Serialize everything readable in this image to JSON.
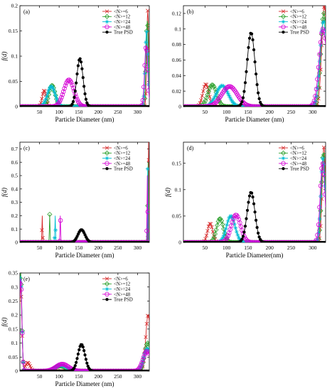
{
  "figure": {
    "legend_entries": [
      {
        "label": "<N>=6",
        "color": "#d62728",
        "marker": "x"
      },
      {
        "label": "<N>=12",
        "color": "#2ca02c",
        "marker": "diamond"
      },
      {
        "label": "<N>=24",
        "color": "#00bcd4",
        "marker": "star"
      },
      {
        "label": "<N>=48",
        "color": "#d400d4",
        "marker": "circle"
      },
      {
        "label": "True PSD",
        "color": "#000000",
        "marker": "dot"
      }
    ]
  },
  "chart_data": [
    {
      "type": "line",
      "panel_label": "(a)",
      "xlabel": "Particle Diameter (nm)",
      "ylabel": "f(d)",
      "xlim": [
        0,
        330
      ],
      "ylim": [
        0,
        0.2
      ],
      "xticks": [
        50,
        100,
        150,
        200,
        250,
        300
      ],
      "yticks": [
        0,
        0.05,
        0.1,
        0.15,
        0.2
      ],
      "ytick_labels": [
        "0",
        "0.05",
        "0.1",
        "0.15",
        "0.2"
      ],
      "legend_position": "top-right",
      "series": [
        {
          "name": "<N>=6",
          "color": "#d62728",
          "peaks": [
            {
              "center": 62,
              "height": 0.032,
              "sigma": 5
            },
            {
              "center": 326,
              "height": 0.19,
              "sigma": 2.5
            }
          ]
        },
        {
          "name": "<N>=12",
          "color": "#2ca02c",
          "peaks": [
            {
              "center": 82,
              "height": 0.042,
              "sigma": 8
            },
            {
              "center": 325,
              "height": 0.17,
              "sigma": 3
            }
          ]
        },
        {
          "name": "<N>=24",
          "color": "#00bcd4",
          "peaks": [
            {
              "center": 80,
              "height": 0.04,
              "sigma": 10
            },
            {
              "center": 323,
              "height": 0.15,
              "sigma": 3.5
            }
          ]
        },
        {
          "name": "<N>=48",
          "color": "#d400d4",
          "peaks": [
            {
              "center": 125,
              "height": 0.053,
              "sigma": 13
            },
            {
              "center": 322,
              "height": 0.12,
              "sigma": 4
            }
          ]
        },
        {
          "name": "True PSD",
          "color": "#000000",
          "peaks": [
            {
              "center": 153,
              "height": 0.095,
              "sigma": 8
            }
          ]
        }
      ]
    },
    {
      "type": "line",
      "panel_label": "(b)",
      "xlabel": "Particle Diameter (nm)",
      "ylabel": "",
      "xlim": [
        0,
        330
      ],
      "ylim": [
        0,
        0.13
      ],
      "xticks": [
        50,
        100,
        150,
        200,
        250,
        300
      ],
      "yticks": [
        0,
        0.02,
        0.04,
        0.06,
        0.08,
        0.1,
        0.12
      ],
      "ytick_labels": [
        "0",
        "0.02",
        "0.04",
        "0.06",
        "0.08",
        "0.1",
        "0.12"
      ],
      "legend_position": "top-right",
      "series": [
        {
          "name": "<N>=6",
          "color": "#d62728",
          "peaks": [
            {
              "center": 52,
              "height": 0.029,
              "sigma": 7
            },
            {
              "center": 327,
              "height": 0.13,
              "sigma": 6
            }
          ]
        },
        {
          "name": "<N>=12",
          "color": "#2ca02c",
          "peaks": [
            {
              "center": 67,
              "height": 0.028,
              "sigma": 10
            },
            {
              "center": 326,
              "height": 0.12,
              "sigma": 7
            }
          ]
        },
        {
          "name": "<N>=24",
          "color": "#00bcd4",
          "peaks": [
            {
              "center": 90,
              "height": 0.027,
              "sigma": 14
            },
            {
              "center": 325,
              "height": 0.11,
              "sigma": 8
            }
          ]
        },
        {
          "name": "<N>=48",
          "color": "#d400d4",
          "peaks": [
            {
              "center": 107,
              "height": 0.026,
              "sigma": 18
            },
            {
              "center": 324,
              "height": 0.1,
              "sigma": 9
            }
          ]
        },
        {
          "name": "True PSD",
          "color": "#000000",
          "peaks": [
            {
              "center": 157,
              "height": 0.095,
              "sigma": 9
            }
          ]
        }
      ]
    },
    {
      "type": "line",
      "panel_label": "(c)",
      "xlabel": "Particle Diameter (nm)",
      "ylabel": "f(d)",
      "xlim": [
        0,
        330
      ],
      "ylim": [
        0,
        0.75
      ],
      "xticks": [
        50,
        100,
        150,
        200,
        250,
        300
      ],
      "yticks": [
        0,
        0.1,
        0.2,
        0.3,
        0.4,
        0.5,
        0.6,
        0.7
      ],
      "ytick_labels": [
        "0",
        "0.1",
        "0.2",
        "0.3",
        "0.4",
        "0.5",
        "0.6",
        "0.7"
      ],
      "legend_position": "top-right",
      "series": [
        {
          "name": "<N>=6",
          "color": "#d62728",
          "peaks": [
            {
              "center": 57,
              "height": 0.2,
              "sigma": 0.8
            },
            {
              "center": 328,
              "height": 0.75,
              "sigma": 0.8
            }
          ]
        },
        {
          "name": "<N>=12",
          "color": "#2ca02c",
          "peaks": [
            {
              "center": 76,
              "height": 0.21,
              "sigma": 0.8
            },
            {
              "center": 327,
              "height": 0.6,
              "sigma": 0.8
            }
          ]
        },
        {
          "name": "<N>=24",
          "color": "#00bcd4",
          "peaks": [
            {
              "center": 90,
              "height": 0.2,
              "sigma": 0.8
            },
            {
              "center": 326,
              "height": 0.55,
              "sigma": 0.8
            }
          ]
        },
        {
          "name": "<N>=48",
          "color": "#d400d4",
          "peaks": [
            {
              "center": 103,
              "height": 0.2,
              "sigma": 0.8
            },
            {
              "center": 325,
              "height": 0.5,
              "sigma": 0.8
            }
          ]
        },
        {
          "name": "True PSD",
          "color": "#000000",
          "peaks": [
            {
              "center": 157,
              "height": 0.095,
              "sigma": 9
            }
          ]
        }
      ]
    },
    {
      "type": "line",
      "panel_label": "(d)",
      "xlabel": "Particle Diameter(nm)",
      "ylabel": "f(d)",
      "xlim": [
        0,
        330
      ],
      "ylim": [
        0,
        0.19
      ],
      "xticks": [
        50,
        100,
        150,
        200,
        250,
        300
      ],
      "yticks": [
        0,
        0.05,
        0.1,
        0.15
      ],
      "ytick_labels": [
        "0",
        "0.05",
        "0.1",
        "0.15"
      ],
      "legend_position": "top-right",
      "series": [
        {
          "name": "<N>=6",
          "color": "#d62728",
          "peaks": [
            {
              "center": 62,
              "height": 0.036,
              "sigma": 6
            },
            {
              "center": 326,
              "height": 0.18,
              "sigma": 4
            }
          ]
        },
        {
          "name": "<N>=12",
          "color": "#2ca02c",
          "peaks": [
            {
              "center": 85,
              "height": 0.045,
              "sigma": 8
            },
            {
              "center": 325,
              "height": 0.17,
              "sigma": 4.5
            }
          ]
        },
        {
          "name": "<N>=24",
          "color": "#00bcd4",
          "peaks": [
            {
              "center": 110,
              "height": 0.05,
              "sigma": 10
            },
            {
              "center": 324,
              "height": 0.16,
              "sigma": 5
            }
          ]
        },
        {
          "name": "<N>=48",
          "color": "#d400d4",
          "peaks": [
            {
              "center": 122,
              "height": 0.052,
              "sigma": 11
            },
            {
              "center": 323,
              "height": 0.15,
              "sigma": 5.5
            }
          ]
        },
        {
          "name": "True PSD",
          "color": "#000000",
          "peaks": [
            {
              "center": 157,
              "height": 0.095,
              "sigma": 9
            }
          ]
        }
      ]
    },
    {
      "type": "line",
      "panel_label": "(e)",
      "xlabel": "Particle Diameter (nm)",
      "ylabel": "f(d)",
      "xlim": [
        0,
        330
      ],
      "ylim": [
        0,
        0.35
      ],
      "xticks": [
        50,
        100,
        150,
        200,
        250,
        300
      ],
      "yticks": [
        0,
        0.05,
        0.1,
        0.15,
        0.2,
        0.25,
        0.3,
        0.35
      ],
      "ytick_labels": [
        "0",
        "0.05",
        "0.1",
        "0.15",
        "0.2",
        "0.25",
        "0.3",
        "0.35"
      ],
      "legend_position": "top-right",
      "series": [
        {
          "name": "<N>=6",
          "color": "#d62728",
          "peaks": [
            {
              "center": 2,
              "height": 0.3,
              "sigma": 3
            },
            {
              "center": 20,
              "height": 0.03,
              "sigma": 6
            },
            {
              "center": 327,
              "height": 0.2,
              "sigma": 6
            }
          ]
        },
        {
          "name": "<N>=12",
          "color": "#2ca02c",
          "peaks": [
            {
              "center": 2,
              "height": 0.35,
              "sigma": 3
            },
            {
              "center": 103,
              "height": 0.018,
              "sigma": 14
            },
            {
              "center": 326,
              "height": 0.1,
              "sigma": 8
            }
          ]
        },
        {
          "name": "<N>=24",
          "color": "#00bcd4",
          "peaks": [
            {
              "center": 2,
              "height": 0.34,
              "sigma": 3
            },
            {
              "center": 105,
              "height": 0.02,
              "sigma": 15
            },
            {
              "center": 325,
              "height": 0.08,
              "sigma": 9
            }
          ]
        },
        {
          "name": "<N>=48",
          "color": "#d400d4",
          "peaks": [
            {
              "center": 2,
              "height": 0.33,
              "sigma": 3
            },
            {
              "center": 108,
              "height": 0.025,
              "sigma": 16
            },
            {
              "center": 324,
              "height": 0.07,
              "sigma": 10
            }
          ]
        },
        {
          "name": "True PSD",
          "color": "#000000",
          "peaks": [
            {
              "center": 157,
              "height": 0.095,
              "sigma": 9
            }
          ]
        }
      ]
    }
  ]
}
